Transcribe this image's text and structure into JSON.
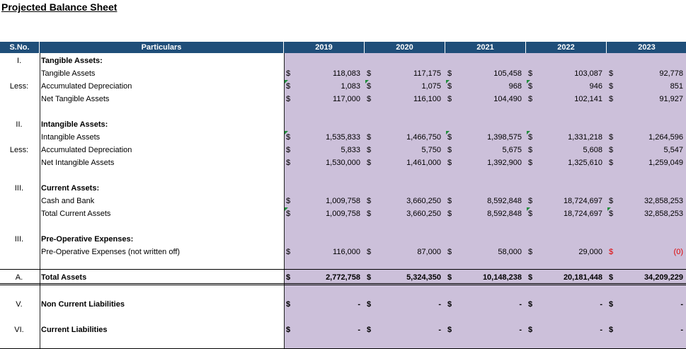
{
  "title": "Projected Balance Sheet",
  "headers": {
    "sno": "S.No.",
    "particulars": "Particulars",
    "years": [
      "2019",
      "2020",
      "2021",
      "2022",
      "2023"
    ]
  },
  "currency_symbol": "$",
  "rows": [
    {
      "sno": "I.",
      "label": "Tangible Assets:",
      "bold": true
    },
    {
      "sno": "",
      "label": "Tangible Assets",
      "values": [
        "118,083",
        "117,175",
        "105,458",
        "103,087",
        "92,778"
      ]
    },
    {
      "sno": "Less:",
      "label": "Accumulated Depreciation",
      "values": [
        "1,083",
        "1,075",
        "968",
        "946",
        "851"
      ]
    },
    {
      "sno": "",
      "label": "Net Tangible Assets",
      "values": [
        "117,000",
        "116,100",
        "104,490",
        "102,141",
        "91,927"
      ]
    },
    {
      "sno": "II.",
      "label": "Intangible Assets:",
      "bold": true
    },
    {
      "sno": "",
      "label": "Intangible Assets",
      "values": [
        "1,535,833",
        "1,466,750",
        "1,398,575",
        "1,331,218",
        "1,264,596"
      ]
    },
    {
      "sno": "Less:",
      "label": "Accumulated Depreciation",
      "values": [
        "5,833",
        "5,750",
        "5,675",
        "5,608",
        "5,547"
      ]
    },
    {
      "sno": "",
      "label": "Net Intangible Assets",
      "values": [
        "1,530,000",
        "1,461,000",
        "1,392,900",
        "1,325,610",
        "1,259,049"
      ]
    },
    {
      "sno": "III.",
      "label": "Current Assets:",
      "bold": true
    },
    {
      "sno": "",
      "label": "Cash and Bank",
      "values": [
        "1,009,758",
        "3,660,250",
        "8,592,848",
        "18,724,697",
        "32,858,253"
      ]
    },
    {
      "sno": "",
      "label": "Total Current Assets",
      "values": [
        "1,009,758",
        "3,660,250",
        "8,592,848",
        "18,724,697",
        "32,858,253"
      ]
    },
    {
      "sno": "III.",
      "label": "Pre-Operative Expenses:",
      "bold": true
    },
    {
      "sno": "",
      "label": "Pre-Operative Expenses (not written off)",
      "values": [
        "116,000",
        "87,000",
        "58,000",
        "29,000",
        "(0)"
      ]
    },
    {
      "sno": "A.",
      "label": "Total Assets",
      "bold": true,
      "values": [
        "2,772,758",
        "5,324,350",
        "10,148,238",
        "20,181,448",
        "34,209,229"
      ]
    },
    {
      "sno": "V.",
      "label": "Non Current Liabilities",
      "bold": true,
      "values": [
        "-",
        "-",
        "-",
        "-",
        "-"
      ]
    },
    {
      "sno": "VI.",
      "label": "Current Liabilities",
      "bold": true,
      "values": [
        "-",
        "-",
        "-",
        "-",
        "-"
      ]
    }
  ]
}
